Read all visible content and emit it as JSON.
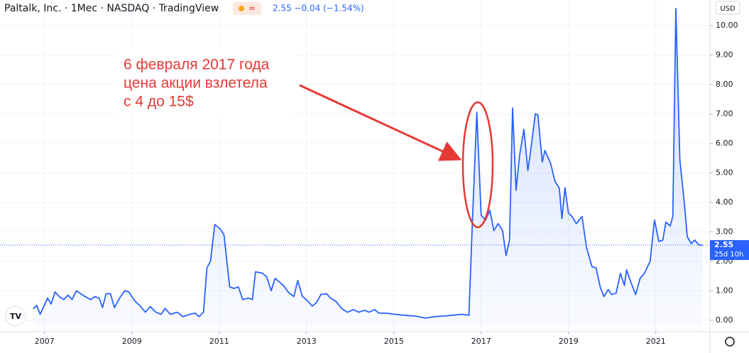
{
  "chart_data": {
    "type": "area",
    "title": "Paltalk, Inc. · 1Мес · NASDAQ · TradingView",
    "quote": "2.55  −0.04 (−1.54%)",
    "currency": "USD",
    "annotation": [
      "6 февраля 2017 года",
      "цена акции взлетела",
      "с 4 до 15$"
    ],
    "color": "#2962ff",
    "x": [
      2006.74,
      2006.82,
      2006.9,
      2007.07,
      2007.15,
      2007.24,
      2007.34,
      2007.44,
      2007.54,
      2007.63,
      2007.73,
      2007.93,
      2008.06,
      2008.15,
      2008.25,
      2008.33,
      2008.41,
      2008.51,
      2008.6,
      2008.74,
      2008.84,
      2008.93,
      2009.07,
      2009.18,
      2009.31,
      2009.42,
      2009.55,
      2009.67,
      2009.76,
      2009.88,
      2010.04,
      2010.17,
      2010.33,
      2010.45,
      2010.54,
      2010.64,
      2010.72,
      2010.8,
      2010.9,
      2011.02,
      2011.11,
      2011.24,
      2011.34,
      2011.44,
      2011.54,
      2011.67,
      2011.76,
      2011.83,
      2011.99,
      2012.09,
      2012.19,
      2012.28,
      2012.38,
      2012.48,
      2012.59,
      2012.71,
      2012.8,
      2012.9,
      2013.03,
      2013.13,
      2013.23,
      2013.33,
      2013.46,
      2013.55,
      2013.68,
      2013.81,
      2013.94,
      2014.07,
      2014.2,
      2014.33,
      2014.43,
      2014.56,
      2014.66,
      2014.82,
      2015.02,
      2015.24,
      2015.49,
      2015.73,
      2015.93,
      2016.14,
      2016.35,
      2016.54,
      2016.72,
      2016.8,
      2016.9,
      2017.0,
      2017.1,
      2017.2,
      2017.29,
      2017.39,
      2017.49,
      2017.57,
      2017.65,
      2017.72,
      2017.8,
      2017.88,
      2017.98,
      2018.07,
      2018.14,
      2018.24,
      2018.3,
      2018.4,
      2018.46,
      2018.59,
      2018.69,
      2018.79,
      2018.85,
      2018.92,
      2019.0,
      2019.08,
      2019.18,
      2019.31,
      2019.41,
      2019.54,
      2019.63,
      2019.73,
      2019.81,
      2019.91,
      2019.99,
      2020.09,
      2020.19,
      2020.28,
      2020.33,
      2020.43,
      2020.54,
      2020.64,
      2020.74,
      2020.87,
      2020.97,
      2021.07,
      2021.16,
      2021.23,
      2021.33,
      2021.39,
      2021.46,
      2021.55,
      2021.66,
      2021.72,
      2021.81,
      2021.89,
      2021.99,
      2022.07
    ],
    "values": [
      0.39,
      0.5,
      0.2,
      0.75,
      0.55,
      0.96,
      0.8,
      0.7,
      0.85,
      0.7,
      1.0,
      0.8,
      0.7,
      0.8,
      0.75,
      0.43,
      0.9,
      0.9,
      0.43,
      0.8,
      1.0,
      0.96,
      0.65,
      0.5,
      0.27,
      0.46,
      0.27,
      0.2,
      0.4,
      0.2,
      0.27,
      0.12,
      0.2,
      0.24,
      0.12,
      0.27,
      1.78,
      2.0,
      3.25,
      3.1,
      2.9,
      1.13,
      1.08,
      1.13,
      0.7,
      0.75,
      0.7,
      1.64,
      1.6,
      1.47,
      1.0,
      1.42,
      1.3,
      1.16,
      0.94,
      0.8,
      1.35,
      0.82,
      0.65,
      0.48,
      0.6,
      0.87,
      0.9,
      0.75,
      0.63,
      0.39,
      0.27,
      0.36,
      0.27,
      0.34,
      0.27,
      0.36,
      0.24,
      0.24,
      0.2,
      0.17,
      0.14,
      0.07,
      0.12,
      0.14,
      0.17,
      0.2,
      0.17,
      3.35,
      7.06,
      3.57,
      3.4,
      3.73,
      3.04,
      3.28,
      3.04,
      2.19,
      2.72,
      7.2,
      4.41,
      5.61,
      6.48,
      5.08,
      5.81,
      7.01,
      6.96,
      5.37,
      5.76,
      5.33,
      4.72,
      4.48,
      3.45,
      4.5,
      3.64,
      3.52,
      3.28,
      3.52,
      2.48,
      1.81,
      1.78,
      1.11,
      0.8,
      1.04,
      0.87,
      0.92,
      1.59,
      1.18,
      1.71,
      1.28,
      0.87,
      1.42,
      1.59,
      2.0,
      3.4,
      2.67,
      2.72,
      3.33,
      3.2,
      3.52,
      10.58,
      5.45,
      3.88,
      2.84,
      2.6,
      2.72,
      2.55,
      2.55
    ],
    "last_price": {
      "value": 2.55,
      "countdown": "25d 10h"
    },
    "xlim": [
      2005.98,
      2022.24
    ],
    "xticks": [
      2007,
      2009,
      2011,
      2013,
      2015,
      2017,
      2019,
      2021
    ],
    "ylim": [
      -0.39,
      10.87
    ],
    "yticks": [
      {
        "value": 0,
        "label": "0.00"
      },
      {
        "value": 1,
        "label": "1.00"
      },
      {
        "value": 2,
        "label": "2.00"
      },
      {
        "value": 3,
        "label": "3.00"
      },
      {
        "value": 4,
        "label": "4.00"
      },
      {
        "value": 5,
        "label": "5.00"
      },
      {
        "value": 6,
        "label": "6.00"
      },
      {
        "value": 7,
        "label": "7.00"
      },
      {
        "value": 8,
        "label": "8.00"
      },
      {
        "value": 9,
        "label": "9.00"
      },
      {
        "value": 10,
        "label": "10.00"
      }
    ]
  }
}
